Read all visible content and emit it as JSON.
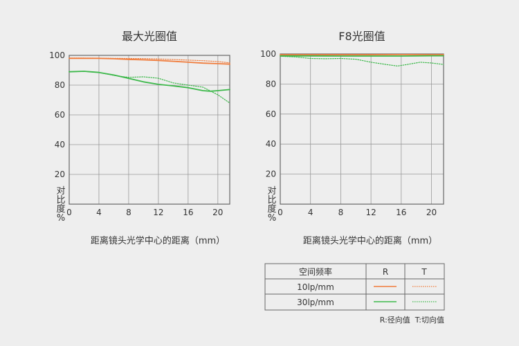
{
  "colors": {
    "orange": "#f07c3c",
    "green": "#3cb84a",
    "grid": "#999999",
    "frame": "#666666"
  },
  "legend": {
    "header": "空间频率",
    "col_r": "R",
    "col_t": "T",
    "rows": [
      {
        "label": "10lp/mm",
        "color": "#f07c3c"
      },
      {
        "label": "30lp/mm",
        "color": "#3cb84a"
      }
    ],
    "note": "R:径向值  T:切向值"
  },
  "chart_data": [
    {
      "type": "line",
      "title": "最大光圈值",
      "xlabel": "距离镜头光学中心的距离（mm）",
      "ylabel": "对比度%",
      "xlim": [
        0,
        21.6
      ],
      "ylim": [
        0,
        100
      ],
      "xticks": [
        0,
        4,
        8,
        12,
        16,
        20
      ],
      "yticks": [
        20,
        40,
        60,
        80,
        100
      ],
      "grid": true,
      "series": [
        {
          "name": "10lp/mm R",
          "color": "#f07c3c",
          "style": "solid",
          "x": [
            0,
            2,
            4,
            6,
            8,
            10,
            12,
            14,
            16,
            18,
            20,
            21.6
          ],
          "y": [
            98,
            98,
            98,
            97.7,
            97.3,
            97,
            96.6,
            96,
            95.4,
            94.8,
            94.4,
            94.1
          ]
        },
        {
          "name": "10lp/mm T",
          "color": "#f07c3c",
          "style": "dotted",
          "x": [
            0,
            2,
            4,
            6,
            8,
            10,
            12,
            14,
            16,
            18,
            20,
            21.6
          ],
          "y": [
            98.2,
            98.2,
            98.1,
            98,
            97.9,
            97.8,
            97.6,
            97.2,
            96.8,
            96.4,
            95.8,
            95
          ]
        },
        {
          "name": "30lp/mm R",
          "color": "#3cb84a",
          "style": "solid",
          "x": [
            0,
            2,
            4,
            6,
            8,
            10,
            12,
            14,
            16,
            18,
            19,
            20,
            21.6
          ],
          "y": [
            89,
            89.3,
            88.5,
            86.8,
            84.5,
            82.2,
            80.5,
            79.5,
            78.3,
            76.3,
            75.9,
            76.3,
            77
          ]
        },
        {
          "name": "30lp/mm T",
          "color": "#3cb84a",
          "style": "dotted",
          "x": [
            0,
            2,
            4,
            6,
            8,
            10,
            12,
            14,
            16,
            18,
            20,
            21.6
          ],
          "y": [
            89,
            89.2,
            88.5,
            86.5,
            85.2,
            85.6,
            84.6,
            81.5,
            80,
            78.6,
            73.5,
            68
          ]
        }
      ]
    },
    {
      "type": "line",
      "title": "F8光圈值",
      "xlabel": "距离镜头光学中心的距离（mm）",
      "ylabel": "对比度%",
      "xlim": [
        0,
        21.6
      ],
      "ylim": [
        0,
        100
      ],
      "xticks": [
        0,
        4,
        8,
        12,
        16,
        20
      ],
      "yticks": [
        20,
        40,
        60,
        80,
        100
      ],
      "grid": true,
      "series": [
        {
          "name": "10lp/mm R",
          "color": "#f07c3c",
          "style": "solid",
          "x": [
            0,
            4,
            8,
            12,
            16,
            20,
            21.6
          ],
          "y": [
            99.5,
            99.5,
            99.5,
            99.5,
            99.6,
            99.5,
            99.5
          ]
        },
        {
          "name": "10lp/mm T",
          "color": "#f07c3c",
          "style": "dotted",
          "x": [
            0,
            4,
            8,
            12,
            16,
            20,
            21.6
          ],
          "y": [
            99.6,
            99.6,
            99.6,
            99.6,
            99.7,
            99.6,
            99.6
          ]
        },
        {
          "name": "30lp/mm R",
          "color": "#3cb84a",
          "style": "solid",
          "x": [
            0,
            4,
            8,
            12,
            16,
            20,
            21.6
          ],
          "y": [
            98.7,
            98.7,
            98.6,
            98.6,
            98.6,
            98.8,
            98.8
          ]
        },
        {
          "name": "30lp/mm T",
          "color": "#3cb84a",
          "style": "dotted",
          "x": [
            0,
            2,
            4,
            6,
            8,
            10,
            12,
            14,
            15.5,
            17,
            18.5,
            20,
            21.6
          ],
          "y": [
            98.5,
            98,
            97,
            96.8,
            97,
            96.5,
            94.5,
            93,
            92,
            93.2,
            94.5,
            94,
            93
          ]
        }
      ]
    }
  ]
}
